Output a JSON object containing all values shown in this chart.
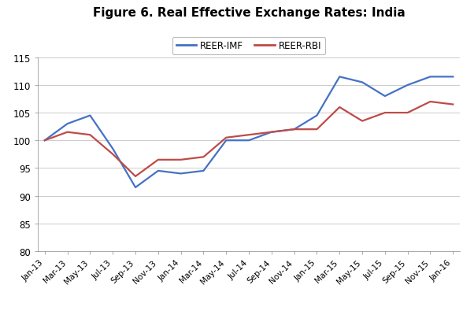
{
  "title": "Figure 6. Real Effective Exchange Rates: India",
  "labels": [
    "Jan-13",
    "Mar-13",
    "May-13",
    "Jul-13",
    "Sep-13",
    "Nov-13",
    "Jan-14",
    "Mar-14",
    "May-14",
    "Jul-14",
    "Sep-14",
    "Nov-14",
    "Jan-15",
    "Mar-15",
    "May-15",
    "Jul-15",
    "Sep-15",
    "Nov-15",
    "Jan-16"
  ],
  "reer_imf": [
    100.0,
    103.0,
    104.5,
    98.5,
    91.5,
    94.5,
    94.0,
    94.5,
    100.0,
    100.0,
    101.5,
    102.0,
    104.5,
    111.5,
    110.5,
    108.0,
    110.0,
    111.5,
    111.5
  ],
  "reer_rbi": [
    100.0,
    101.5,
    101.0,
    97.5,
    93.5,
    96.5,
    96.5,
    97.0,
    100.5,
    101.0,
    101.5,
    102.0,
    102.0,
    106.0,
    103.5,
    105.0,
    105.0,
    107.0,
    106.5
  ],
  "imf_color": "#4472C4",
  "rbi_color": "#BE4B48",
  "ylim": [
    80,
    115
  ],
  "yticks": [
    80,
    85,
    90,
    95,
    100,
    105,
    110,
    115
  ],
  "legend_labels": [
    "REER-IMF",
    "REER-RBI"
  ],
  "grid_color": "#CCCCCC",
  "line_width": 1.6,
  "title_fontsize": 11
}
